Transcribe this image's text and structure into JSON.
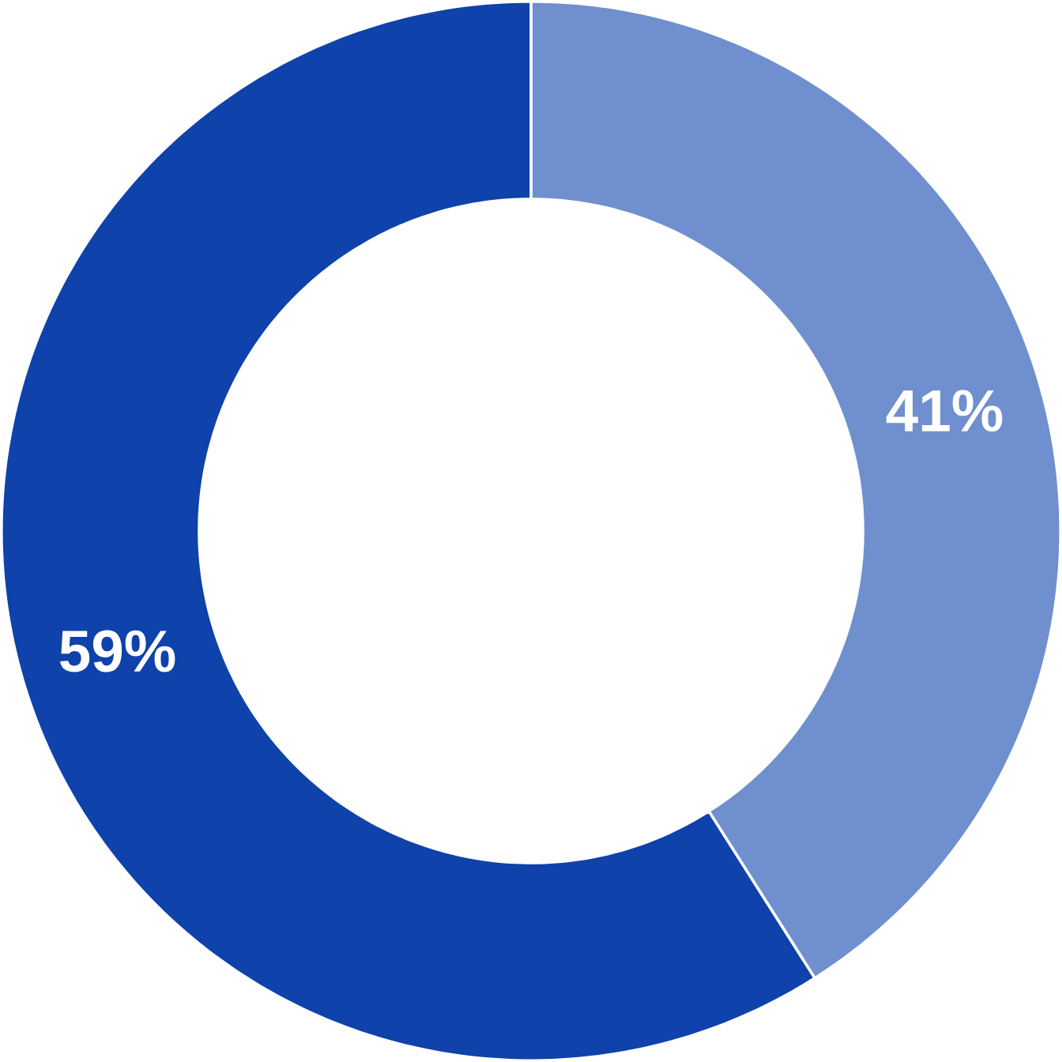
{
  "chart_data": {
    "type": "donut",
    "categories": [
      null,
      null
    ],
    "values": [
      41,
      59
    ],
    "colors": [
      "#6f8fce",
      "#0f42aa"
    ],
    "value_labels": [
      "41%",
      "59%"
    ]
  }
}
